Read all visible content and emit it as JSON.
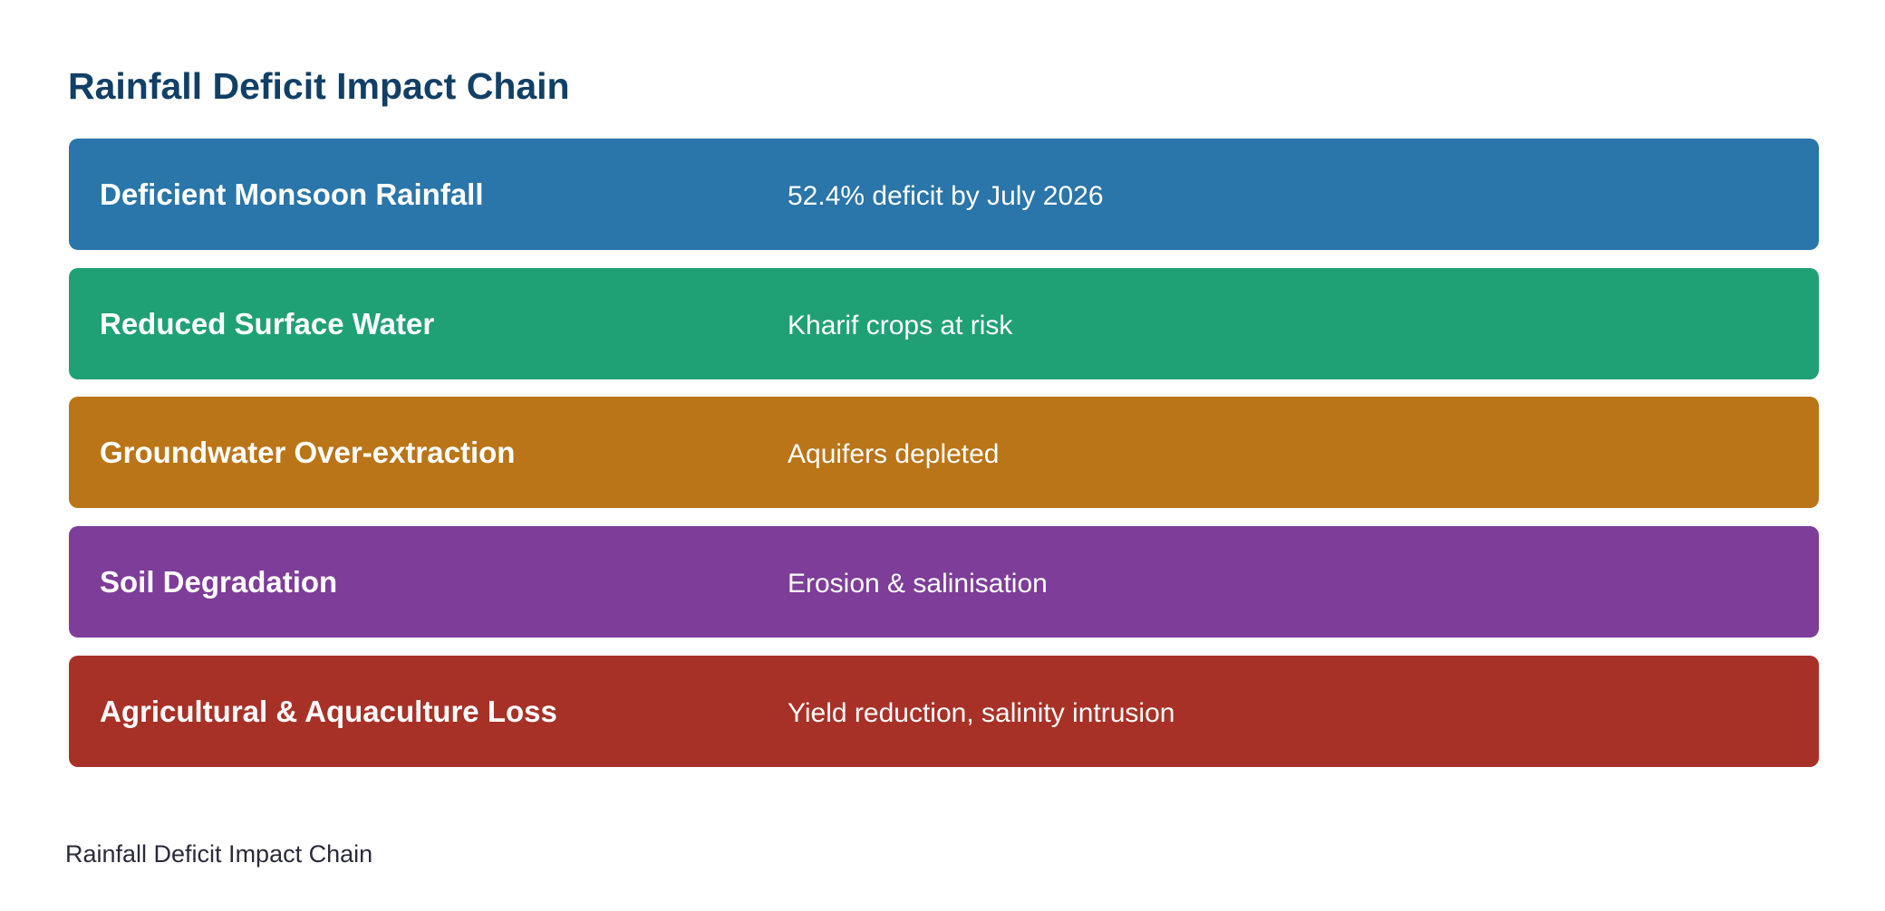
{
  "title": "Rainfall Deficit Impact Chain",
  "steps": [
    {
      "label": "Deficient Monsoon Rainfall",
      "detail": "52.4% deficit by July 2026",
      "color": "#2a75a9"
    },
    {
      "label": "Reduced Surface Water",
      "detail": "Kharif crops at risk",
      "color": "#20a175"
    },
    {
      "label": "Groundwater Over-extraction",
      "detail": "Aquifers depleted",
      "color": "#ba7518"
    },
    {
      "label": "Soil Degradation",
      "detail": "Erosion & salinisation",
      "color": "#7d3d98"
    },
    {
      "label": "Agricultural & Aquaculture Loss",
      "detail": "Yield reduction, salinity intrusion",
      "color": "#a83127"
    }
  ],
  "caption": "Rainfall Deficit Impact Chain"
}
